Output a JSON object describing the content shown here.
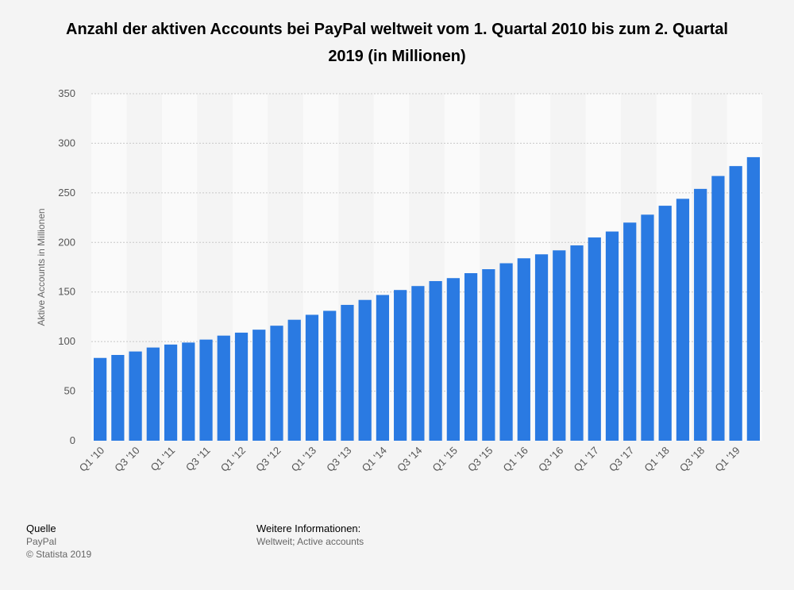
{
  "title": "Anzahl der aktiven Accounts bei PayPal weltweit vom 1. Quartal 2010 bis zum 2. Quartal 2019 (in Millionen)",
  "colors": {
    "bar": "#2a7ae2",
    "background": "#f4f4f4",
    "band": "#fafafa",
    "grid": "#c8c8c8",
    "axis_text": "#555555"
  },
  "chart_data": {
    "type": "bar",
    "title": "Anzahl der aktiven Accounts bei PayPal weltweit vom 1. Quartal 2010 bis zum 2. Quartal 2019 (in Millionen)",
    "xlabel": "",
    "ylabel": "Aktive Accounts in Millionen",
    "ylim": [
      0,
      350
    ],
    "yticks": [
      0,
      50,
      100,
      150,
      200,
      250,
      300,
      350
    ],
    "grid": true,
    "categories": [
      "Q1 '10",
      "Q2 '10",
      "Q3 '10",
      "Q4 '10",
      "Q1 '11",
      "Q2 '11",
      "Q3 '11",
      "Q4 '11",
      "Q1 '12",
      "Q2 '12",
      "Q3 '12",
      "Q4 '12",
      "Q1 '13",
      "Q2 '13",
      "Q3 '13",
      "Q4 '13",
      "Q1 '14",
      "Q2 '14",
      "Q3 '14",
      "Q4 '14",
      "Q1 '15",
      "Q2 '15",
      "Q3 '15",
      "Q4 '15",
      "Q1 '16",
      "Q2 '16",
      "Q3 '16",
      "Q4 '16",
      "Q1 '17",
      "Q2 '17",
      "Q3 '17",
      "Q4 '17",
      "Q1 '18",
      "Q2 '18",
      "Q3 '18",
      "Q4 '18",
      "Q1 '19",
      "Q2 '19"
    ],
    "tick_labels": [
      "Q1 '10",
      "Q3 '10",
      "Q1 '11",
      "Q3 '11",
      "Q1 '12",
      "Q3 '12",
      "Q1 '13",
      "Q3 '13",
      "Q1 '14",
      "Q3 '14",
      "Q1 '15",
      "Q3 '15",
      "Q1 '16",
      "Q3 '16",
      "Q1 '17",
      "Q3 '17",
      "Q1 '18",
      "Q3 '18",
      "Q1 '19"
    ],
    "values": [
      83.5,
      86.5,
      90,
      94,
      97,
      99,
      102,
      106,
      109,
      112,
      116,
      122,
      127,
      131,
      137,
      142,
      147,
      152,
      156,
      161,
      164,
      169,
      173,
      179,
      184,
      188,
      192,
      197,
      205,
      211,
      220,
      228,
      237,
      244,
      254,
      267,
      277,
      286
    ]
  },
  "footer": {
    "source_heading": "Quelle",
    "source_name": "PayPal",
    "copyright": "© Statista 2019",
    "info_heading": "Weitere Informationen:",
    "info_text": "Weltweit; Active accounts"
  }
}
